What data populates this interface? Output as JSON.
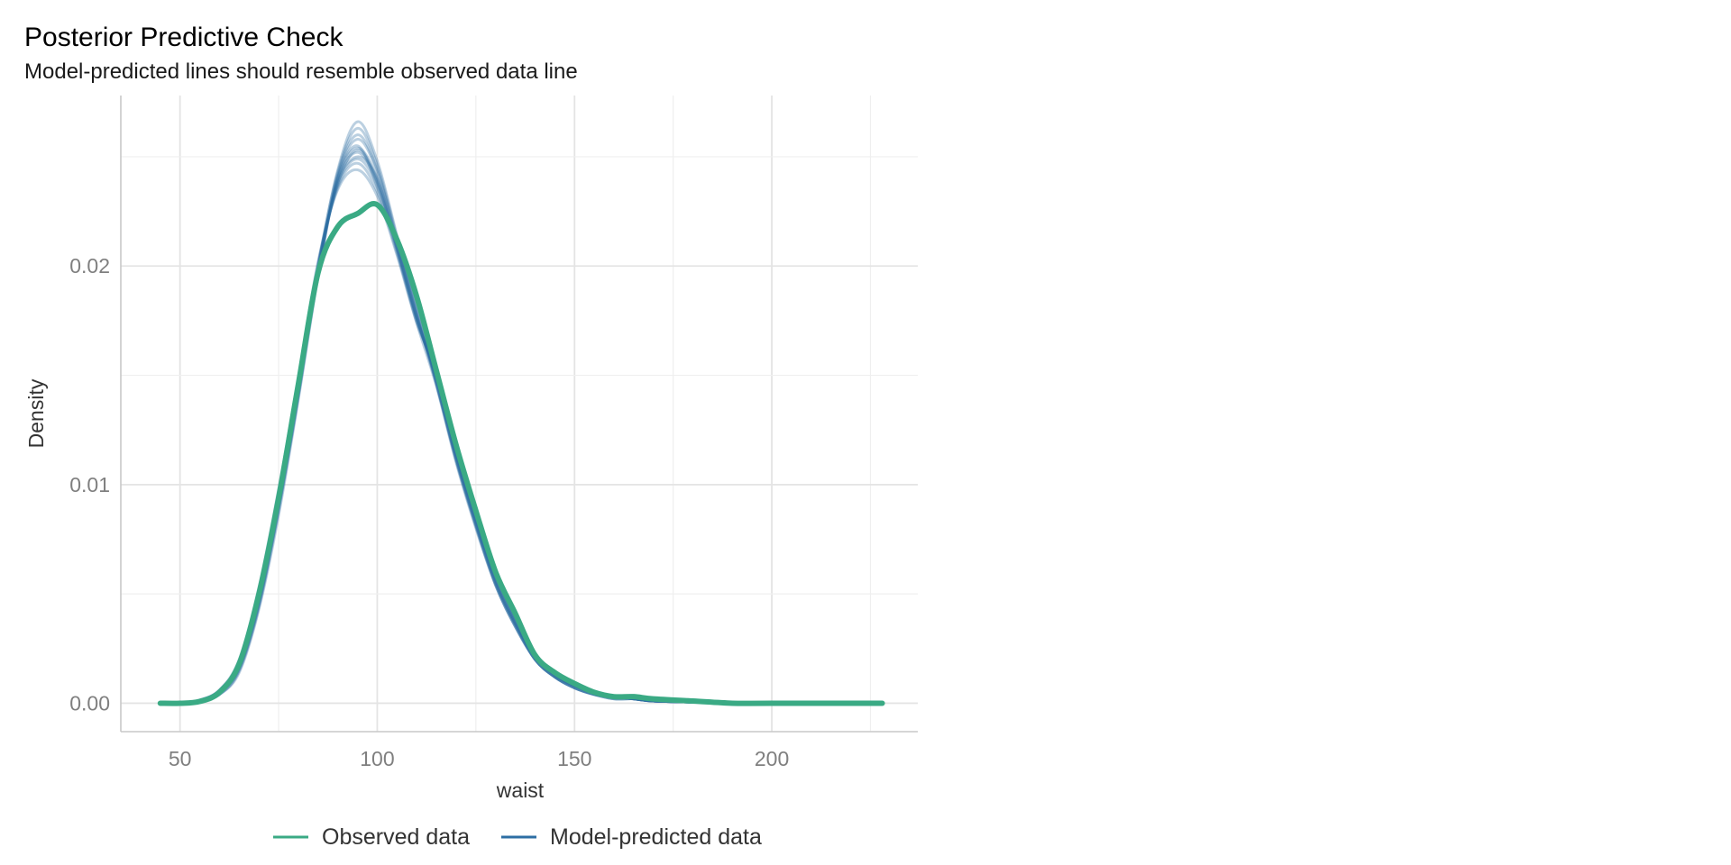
{
  "chart_data": {
    "type": "line",
    "title": "Posterior Predictive Check",
    "subtitle": "Model-predicted lines should resemble observed data line",
    "xlabel": "waist",
    "ylabel": "Density",
    "xlim": [
      35,
      237
    ],
    "ylim": [
      -0.0013,
      0.0278
    ],
    "x_ticks": [
      50,
      100,
      150,
      200
    ],
    "x_tick_labels": [
      "50",
      "100",
      "150",
      "200"
    ],
    "y_ticks": [
      0,
      0.01,
      0.02
    ],
    "y_tick_labels": [
      "0.00",
      "0.01",
      "0.02"
    ],
    "grid": true,
    "legend_position": "bottom",
    "colors": {
      "observed": "#3aaa84",
      "predicted": "#2d6ea3"
    },
    "legend": [
      {
        "label": "Observed data",
        "color": "#3aaa84"
      },
      {
        "label": "Model-predicted data",
        "color": "#2d6ea3"
      }
    ],
    "series": [
      {
        "name": "Observed data",
        "x": [
          45,
          50,
          55,
          60,
          65,
          70,
          75,
          80,
          85,
          90,
          95,
          100,
          105,
          110,
          115,
          120,
          125,
          130,
          135,
          140,
          145,
          150,
          155,
          160,
          165,
          170,
          180,
          190,
          200,
          228
        ],
        "y": [
          0.0,
          0.0,
          8e-05,
          0.0005,
          0.0018,
          0.005,
          0.0094,
          0.0146,
          0.0197,
          0.0218,
          0.0224,
          0.0228,
          0.0212,
          0.0186,
          0.0152,
          0.0118,
          0.0088,
          0.006,
          0.0041,
          0.0022,
          0.0014,
          0.0009,
          0.0005,
          0.0003,
          0.0003,
          0.0002,
          0.0001,
          0.0,
          0.0,
          0.0
        ]
      }
    ],
    "predicted_draws": {
      "name": "Model-predicted data",
      "x": [
        45,
        50,
        55,
        60,
        65,
        70,
        75,
        80,
        85,
        90,
        95,
        100,
        105,
        110,
        115,
        120,
        125,
        130,
        135,
        140,
        145,
        150,
        155,
        160,
        165,
        170,
        180,
        190,
        200,
        228
      ],
      "draws": [
        [
          0.0,
          1e-05,
          0.00012,
          0.0005,
          0.0017,
          0.0048,
          0.0092,
          0.0143,
          0.0199,
          0.0239,
          0.0252,
          0.0238,
          0.0208,
          0.0176,
          0.0148,
          0.0113,
          0.0083,
          0.0056,
          0.0037,
          0.0021,
          0.0013,
          0.0008,
          0.0005,
          0.0003,
          0.0002,
          0.0001,
          5e-05,
          0.0,
          0.0,
          0.0
        ],
        [
          0.0,
          1e-05,
          0.0001,
          0.0004,
          0.0015,
          0.0044,
          0.0088,
          0.014,
          0.0196,
          0.0241,
          0.0258,
          0.0243,
          0.0211,
          0.0178,
          0.0146,
          0.0112,
          0.0082,
          0.0055,
          0.0036,
          0.002,
          0.0012,
          0.0007,
          0.0004,
          0.0003,
          0.0002,
          0.0001,
          5e-05,
          0.0,
          0.0,
          0.0
        ],
        [
          0.0,
          2e-05,
          0.00014,
          0.0006,
          0.0019,
          0.0051,
          0.0096,
          0.0147,
          0.0201,
          0.0236,
          0.0247,
          0.0234,
          0.0206,
          0.0175,
          0.015,
          0.0115,
          0.0085,
          0.0058,
          0.0038,
          0.0022,
          0.0014,
          0.0009,
          0.0005,
          0.0003,
          0.0002,
          0.0001,
          5e-05,
          0.0,
          0.0,
          0.0
        ],
        [
          0.0,
          1e-05,
          0.00011,
          0.0005,
          0.0016,
          0.0046,
          0.009,
          0.0142,
          0.02,
          0.0243,
          0.0263,
          0.0246,
          0.0213,
          0.018,
          0.0147,
          0.0111,
          0.0081,
          0.0054,
          0.0035,
          0.002,
          0.0012,
          0.0007,
          0.0004,
          0.0002,
          0.0002,
          0.0001,
          5e-05,
          0.0,
          0.0,
          0.0
        ],
        [
          0.0,
          1e-05,
          0.00013,
          0.0005,
          0.0018,
          0.0049,
          0.0094,
          0.0145,
          0.0198,
          0.0238,
          0.025,
          0.024,
          0.021,
          0.0177,
          0.0149,
          0.0114,
          0.0084,
          0.0057,
          0.0037,
          0.0021,
          0.0013,
          0.0008,
          0.0005,
          0.0003,
          0.0002,
          0.0001,
          5e-05,
          0.0,
          0.0,
          0.0
        ],
        [
          0.0,
          1e-05,
          0.0001,
          0.0004,
          0.0014,
          0.0043,
          0.0086,
          0.0139,
          0.0195,
          0.024,
          0.0255,
          0.0236,
          0.0207,
          0.0174,
          0.0145,
          0.011,
          0.008,
          0.0054,
          0.0035,
          0.002,
          0.0012,
          0.0007,
          0.0004,
          0.0002,
          0.0002,
          0.0001,
          5e-05,
          0.0,
          0.0,
          0.0
        ],
        [
          0.0,
          2e-05,
          0.00015,
          0.0006,
          0.002,
          0.0053,
          0.0098,
          0.0149,
          0.0202,
          0.0235,
          0.0244,
          0.0232,
          0.0205,
          0.0174,
          0.0151,
          0.0116,
          0.0086,
          0.0059,
          0.0039,
          0.0022,
          0.0014,
          0.0009,
          0.0005,
          0.0003,
          0.0002,
          0.0001,
          5e-05,
          0.0,
          0.0,
          0.0
        ],
        [
          0.0,
          1e-05,
          0.00012,
          0.0005,
          0.0017,
          0.0047,
          0.0091,
          0.0144,
          0.0197,
          0.0242,
          0.026,
          0.0244,
          0.0212,
          0.0179,
          0.0147,
          0.0112,
          0.0082,
          0.0055,
          0.0036,
          0.002,
          0.0012,
          0.0008,
          0.0004,
          0.0003,
          0.0002,
          0.0001,
          5e-05,
          0.0,
          0.0,
          0.0
        ],
        [
          0.0,
          1e-05,
          0.00011,
          0.0005,
          0.0016,
          0.0045,
          0.0089,
          0.0141,
          0.0199,
          0.0244,
          0.0266,
          0.0248,
          0.0214,
          0.0181,
          0.0146,
          0.0111,
          0.0081,
          0.0054,
          0.0035,
          0.002,
          0.0012,
          0.0007,
          0.0004,
          0.0002,
          0.0002,
          0.0001,
          5e-05,
          0.0,
          0.0,
          0.0
        ],
        [
          0.0,
          1e-05,
          0.00013,
          0.0005,
          0.0018,
          0.005,
          0.0095,
          0.0146,
          0.0199,
          0.0237,
          0.0249,
          0.0237,
          0.0209,
          0.0176,
          0.0149,
          0.0114,
          0.0084,
          0.0057,
          0.0037,
          0.0021,
          0.0013,
          0.0008,
          0.0005,
          0.0003,
          0.0002,
          0.0001,
          5e-05,
          0.0,
          0.0,
          0.0
        ],
        [
          0.0,
          1e-05,
          0.0001,
          0.0004,
          0.0015,
          0.0045,
          0.0089,
          0.0141,
          0.0196,
          0.024,
          0.0254,
          0.024,
          0.0209,
          0.0177,
          0.0146,
          0.0112,
          0.0082,
          0.0055,
          0.0036,
          0.002,
          0.0012,
          0.0007,
          0.0004,
          0.0003,
          0.0002,
          0.0001,
          5e-05,
          0.0,
          0.0,
          0.0
        ],
        [
          0.0,
          2e-05,
          0.00014,
          0.0006,
          0.0019,
          0.0052,
          0.0097,
          0.0148,
          0.02,
          0.0238,
          0.0253,
          0.0239,
          0.0208,
          0.0176,
          0.015,
          0.0115,
          0.0085,
          0.0058,
          0.0038,
          0.0022,
          0.0014,
          0.0009,
          0.0005,
          0.0003,
          0.0002,
          0.0001,
          5e-05,
          0.0,
          0.0,
          0.0
        ]
      ]
    }
  }
}
